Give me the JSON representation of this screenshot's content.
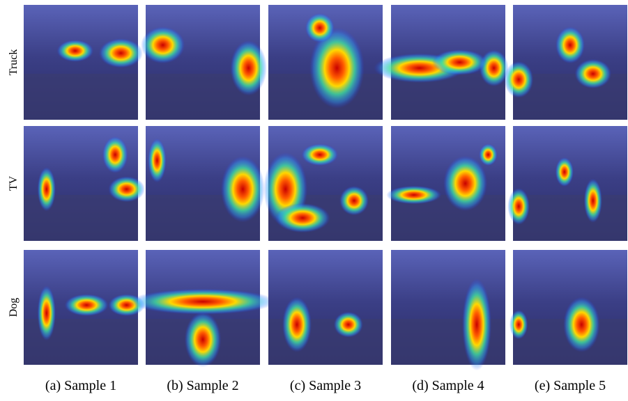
{
  "row_labels": [
    "Truck",
    "TV",
    "Dog"
  ],
  "captions": [
    "(a) Sample 1",
    "(b) Sample 2",
    "(c) Sample 3",
    "(d) Sample 4",
    "(e) Sample 5"
  ]
}
